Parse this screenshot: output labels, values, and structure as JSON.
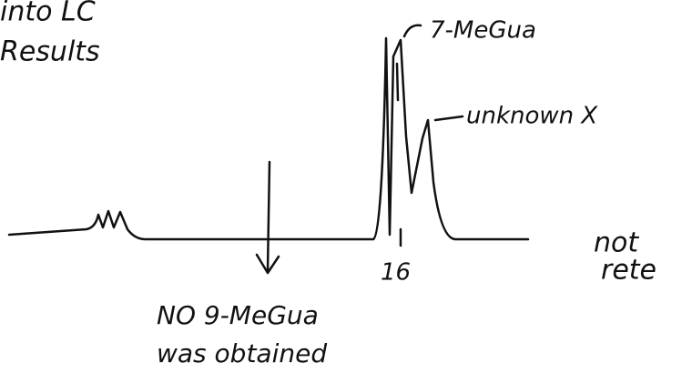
{
  "header": {
    "lines": [
      "into LC",
      "Results"
    ]
  },
  "annotations": {
    "peak_1": "7-MeGua",
    "peak_2": "unknown X",
    "tick": "16",
    "note": [
      "NO 9-MeGua",
      "was obtained"
    ],
    "side_note": [
      "not",
      "rete"
    ]
  }
}
